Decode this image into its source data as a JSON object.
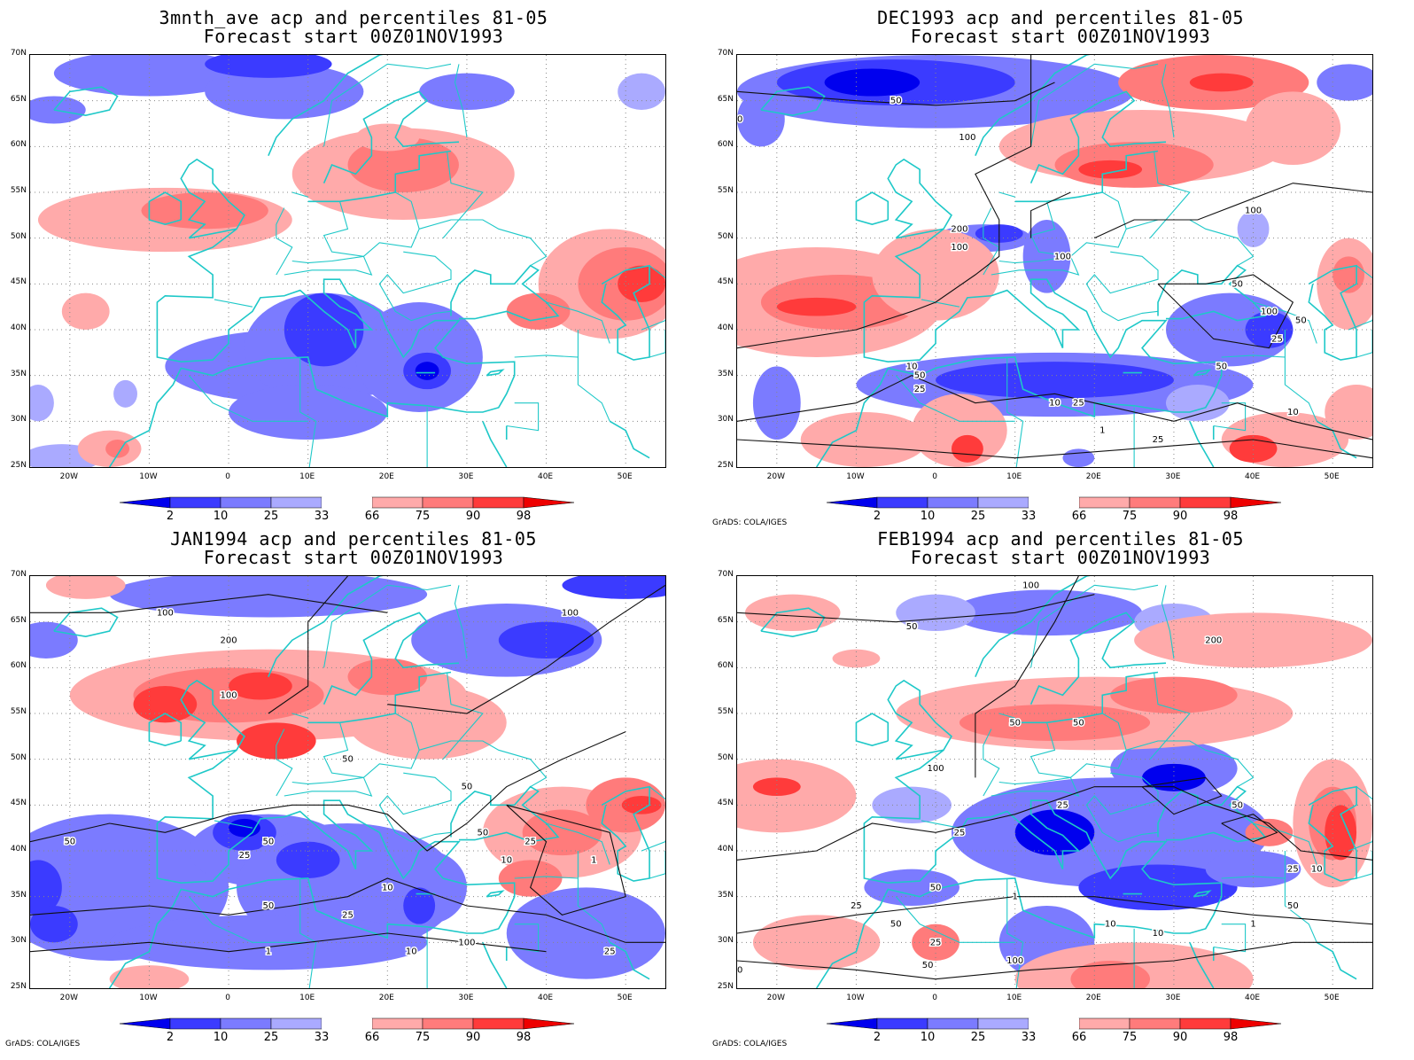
{
  "lat_labels": [
    "70N",
    "65N",
    "60N",
    "55N",
    "50N",
    "45N",
    "40N",
    "35N",
    "30N",
    "25N"
  ],
  "lon_labels": [
    "20W",
    "10W",
    "0",
    "10E",
    "20E",
    "30E",
    "40E",
    "50E"
  ],
  "colorbar_labels": [
    "2",
    "10",
    "25",
    "33",
    "66",
    "75",
    "90",
    "98"
  ],
  "colorbar_colors": [
    "#0000ee",
    "#3b3bff",
    "#7b7bff",
    "#aaaaff",
    "#ffaaaa",
    "#ff7b7b",
    "#ff3b3b",
    "#ee0000"
  ],
  "credit": "GrADS: COLA/IGES",
  "panels": [
    {
      "title1": "3mnth_ave acp and percentiles 81-05",
      "title2": "Forecast start 00Z01NOV1993",
      "credit": ""
    },
    {
      "title1": "DEC1993 acp and percentiles 81-05",
      "title2": "Forecast start 00Z01NOV1993",
      "credit": "GrADS: COLA/IGES"
    },
    {
      "title1": "JAN1994 acp and percentiles 81-05",
      "title2": "Forecast start 00Z01NOV1993",
      "credit": "GrADS: COLA/IGES"
    },
    {
      "title1": "FEB1994 acp and percentiles 81-05",
      "title2": "Forecast start 00Z01NOV1993",
      "credit": "GrADS: COLA/IGES"
    }
  ],
  "contour_labels": {
    "p1": [
      "50",
      "100",
      "200",
      "100",
      "100",
      "50",
      "100",
      "50",
      "100",
      "50",
      "25",
      "50",
      "50",
      "25",
      "10",
      "25",
      "10",
      "1",
      "25",
      "10",
      "25",
      "1",
      "50",
      "25",
      "100"
    ],
    "p2": [
      "100",
      "100",
      "200",
      "100",
      "50",
      "50",
      "50",
      "50",
      "50",
      "25",
      "50",
      "10",
      "25",
      "1",
      "100",
      "25",
      "10",
      "10",
      "1",
      "25"
    ],
    "p3": [
      "100",
      "50",
      "200",
      "100",
      "50",
      "50",
      "50",
      "25",
      "25",
      "50",
      "10",
      "25",
      "25",
      "1",
      "10",
      "10",
      "1",
      "50",
      "25",
      "100",
      "50",
      "10",
      "50"
    ]
  }
}
